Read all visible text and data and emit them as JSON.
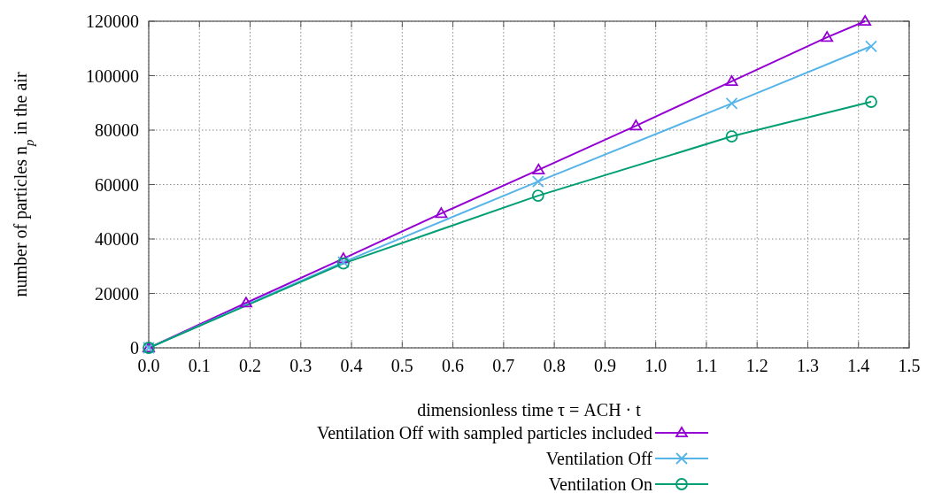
{
  "chart_data": {
    "type": "line",
    "xlabel": "dimensionless time τ = ACH · t",
    "ylabel": "number of particles n$_{p}$ in the air",
    "xlim": [
      0,
      1.5
    ],
    "xticks": [
      {
        "value": 0,
        "label": "0.0"
      },
      0.1,
      0.2,
      0.3,
      0.4,
      0.5,
      0.6,
      0.7,
      0.8,
      0.9,
      {
        "value": 1,
        "label": "1.0"
      },
      1.1,
      1.2,
      1.3,
      1.4,
      1.5
    ],
    "ylim": [
      0,
      120000
    ],
    "yticks": [
      0,
      20000,
      40000,
      60000,
      80000,
      100000,
      120000
    ],
    "grid": true,
    "legend": "bottom",
    "line_style": "solid",
    "series": [
      {
        "name": "Ventilation Off with sampled particles included",
        "color": "#9400d3",
        "marker": "triangle",
        "x": [
          0,
          0.192,
          0.384,
          0.577,
          0.769,
          0.961,
          1.15,
          1.338,
          1.413
        ],
        "values": [
          0,
          16500,
          32800,
          49400,
          65400,
          81600,
          97900,
          114100,
          120000
        ]
      },
      {
        "name": "Ventilation Off",
        "color": "#56b4e9",
        "marker": "cross",
        "x": [
          0,
          0.384,
          0.768,
          1.15,
          1.425
        ],
        "values": [
          0,
          31500,
          61100,
          89800,
          110800
        ]
      },
      {
        "name": "Ventilation On",
        "color": "#009e73",
        "marker": "circle",
        "x": [
          0,
          0.384,
          0.768,
          1.15,
          1.425
        ],
        "values": [
          0,
          31000,
          55900,
          77700,
          90400
        ]
      }
    ]
  }
}
